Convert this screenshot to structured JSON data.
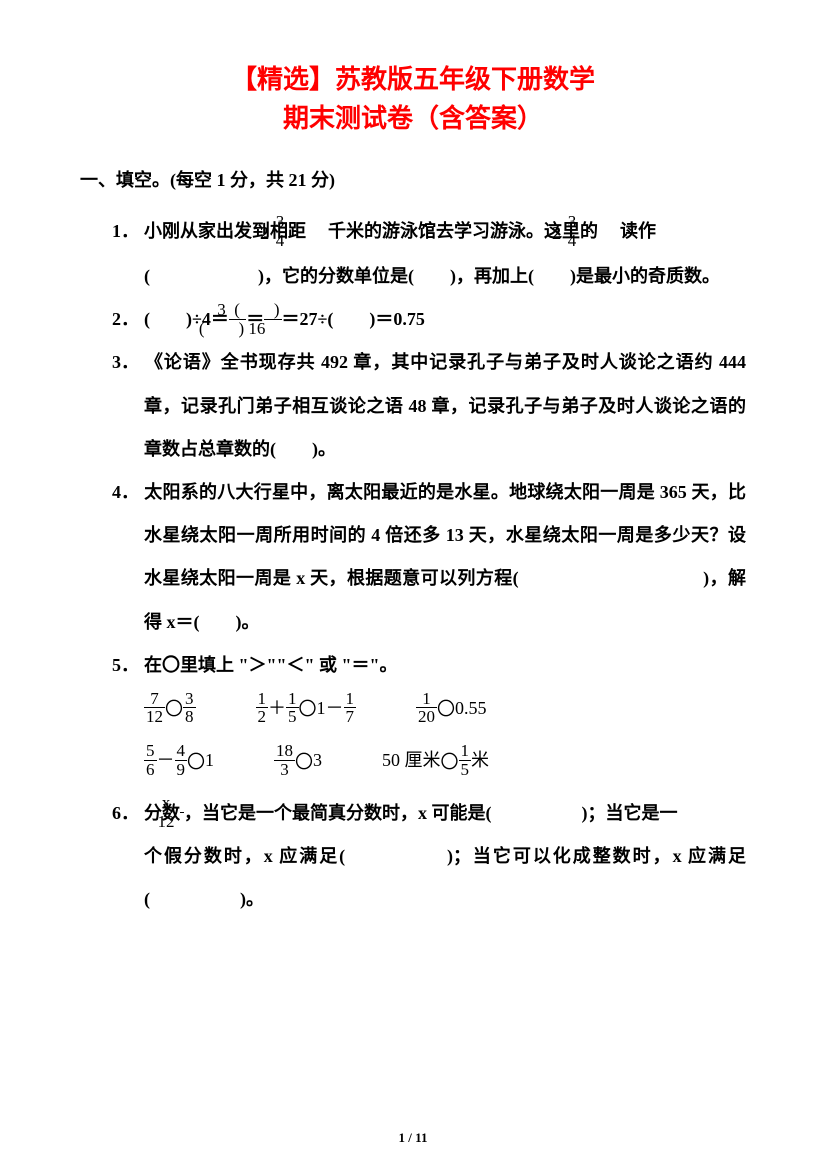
{
  "title_line1": "【精选】苏教版五年级下册数学",
  "title_line2": "期末测试卷（含答案）",
  "title_color": "#ff0000",
  "section1_head": "一、填空。(每空 1 分，共 21 分)",
  "q1": {
    "num": "1．",
    "pre": "小刚从家出发到相距　",
    "mix_whole": "2",
    "mix_top": "3",
    "mix_bot": "4",
    "mid": "千米的游泳馆去学习游泳。这里的　",
    "mix2_whole": "2",
    "mix2_top": "3",
    "mix2_bot": "4",
    "tail": "读作",
    "line2": "(　　　　　　)，它的分数单位是(　　)，再加上(　　)是最小的奇质数。"
  },
  "q2": {
    "num": "2．",
    "a": "(　　)÷4＝",
    "f1_top": "3",
    "f1_bot": "(　　)",
    "b": "＝",
    "f2_top": "(　　)",
    "f2_bot": "16",
    "c": "＝27÷(　　)＝0.75"
  },
  "q3": {
    "num": "3．",
    "text": "《论语》全书现存共 492 章，其中记录孔子与弟子及时人谈论之语约 444 章，记录孔门弟子相互谈论之语 48 章，记录孔子与弟子及时人谈论之语的章数占总章数的(　　)。"
  },
  "q4": {
    "num": "4．",
    "text": "太阳系的八大行星中，离太阳最近的是水星。地球绕太阳一周是 365 天，比水星绕太阳一周所用时间的 4 倍还多 13 天，水星绕太阳一周是多少天？设水星绕太阳一周是 x 天，根据题意可以列方程(　　　　　　　　　　)，解得 x＝(　　)。"
  },
  "q5": {
    "num": "5．",
    "head": "在〇里填上 \"＞\"\"＜\" 或 \"＝\"。",
    "row1": {
      "c1": {
        "f1t": "7",
        "f1b": "12",
        "op": "〇",
        "f2t": "3",
        "f2b": "8"
      },
      "c2": {
        "f1t": "1",
        "f1b": "2",
        "plus": "＋",
        "f2t": "1",
        "f2b": "5",
        "op": "〇",
        "one": "1－",
        "f3t": "1",
        "f3b": "7"
      },
      "c3": {
        "f1t": "1",
        "f1b": "20",
        "op": "〇",
        "n": "0.55"
      }
    },
    "row2": {
      "c1": {
        "f1t": "5",
        "f1b": "6",
        "minus": "－",
        "f2t": "4",
        "f2b": "9",
        "op": "〇",
        "n": "1"
      },
      "c2": {
        "f1t": "18",
        "f1b": "3",
        "op": "〇",
        "n": "3"
      },
      "c3": {
        "pre": "50 厘米",
        "op": "〇",
        "f1t": "1",
        "f1b": "5",
        "post": "米"
      }
    }
  },
  "q6": {
    "num": "6．",
    "pre": "分数",
    "ft": "x",
    "fb": "12",
    "rest": "，当它是一个最简真分数时，x 可能是(　　　　　)；当它是一",
    "line2": "个假分数时，x 应满足(　　　　　)；当它可以化成整数时，x 应满足(　　　　　)。"
  },
  "pagenum": "1 / 11"
}
